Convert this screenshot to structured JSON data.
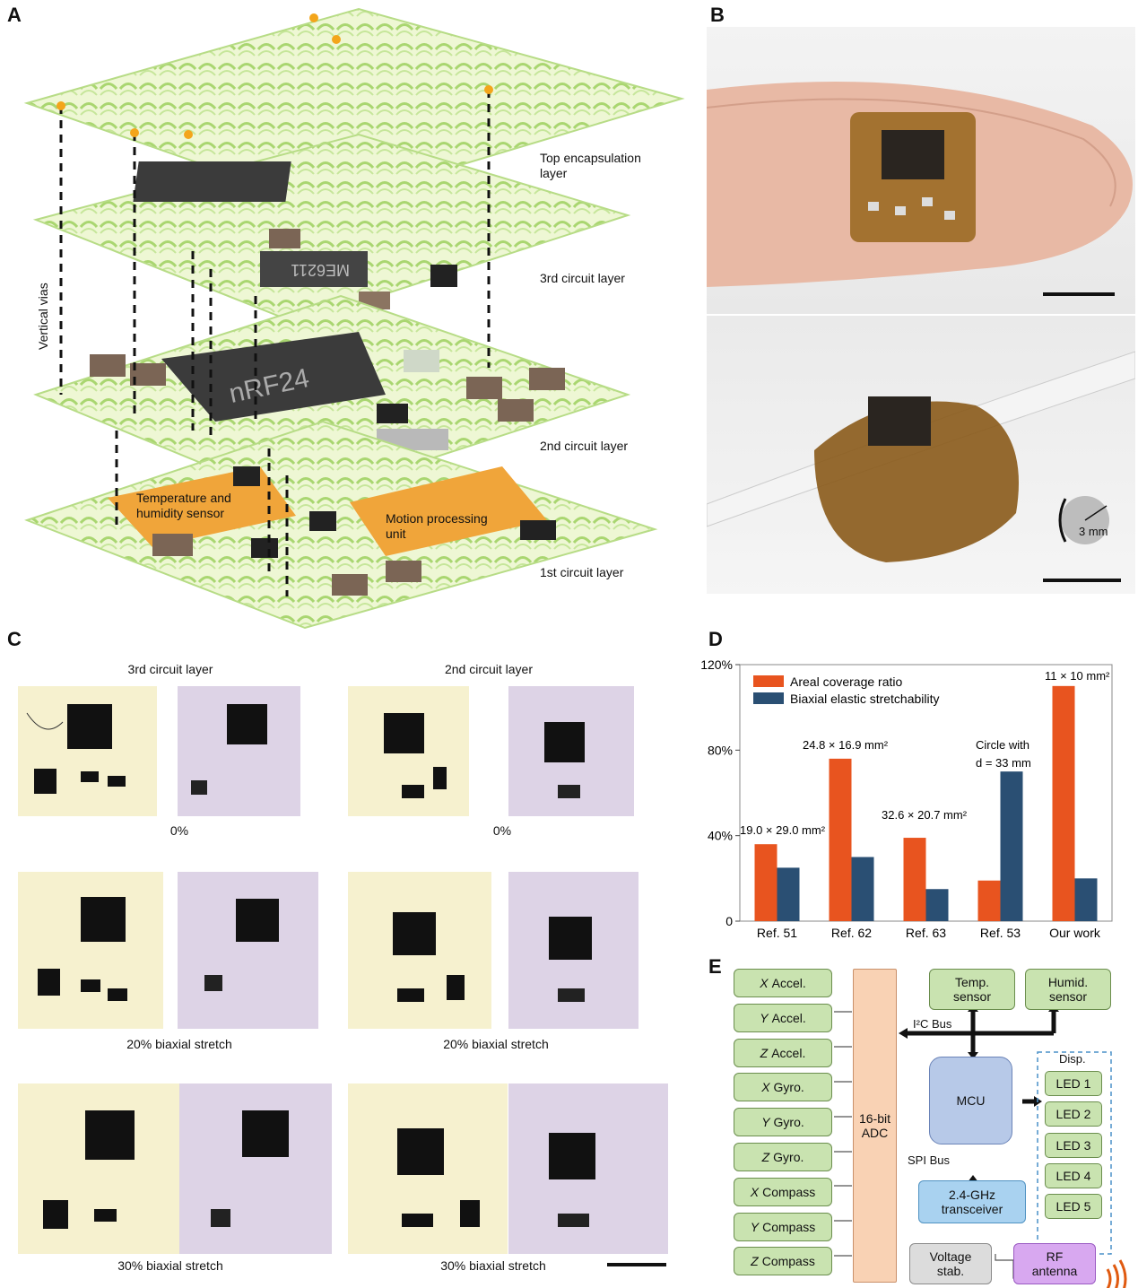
{
  "panels": {
    "a": "A",
    "b": "B",
    "c": "C",
    "d": "D",
    "e": "E"
  },
  "panel_a": {
    "labels": {
      "top": "Top encapsulation layer",
      "third": "3rd circuit layer",
      "second": "2nd circuit layer",
      "first": "1st circuit layer",
      "vias": "Vertical vias",
      "temp": "Temperature and humidity sensor",
      "motion": "Motion processing unit",
      "chip1": "nRF24",
      "chip2": "ME6211"
    }
  },
  "panel_b": {
    "radius_label": "3 mm"
  },
  "panel_c": {
    "col_titles": [
      "3rd circuit layer",
      "2nd circuit layer"
    ],
    "rows": [
      {
        "left": "0%",
        "right": "0%"
      },
      {
        "left": "20% biaxial stretch",
        "right": "20% biaxial stretch"
      },
      {
        "left": "30% biaxial stretch",
        "right": "30% biaxial stretch"
      }
    ]
  },
  "chart_data": {
    "type": "bar",
    "categories": [
      "Ref. 51",
      "Ref. 62",
      "Ref. 63",
      "Ref. 53",
      "Our work"
    ],
    "series": [
      {
        "name": "Areal coverage ratio",
        "color": "#e8541f",
        "values": [
          36,
          76,
          39,
          19,
          110
        ]
      },
      {
        "name": "Biaxial elastic stretchability",
        "color": "#2a4f73",
        "values": [
          25,
          30,
          15,
          70,
          20
        ]
      }
    ],
    "ylim": [
      0,
      120
    ],
    "yticks": [
      "0",
      "40%",
      "80%",
      "120%"
    ],
    "annotations": [
      "19.0 × 29.0 mm²",
      "24.8 × 16.9 mm²",
      "32.6 × 20.7 mm²",
      "Circle with",
      "d = 33 mm",
      "11 × 10 mm²"
    ],
    "legend": "top-left"
  },
  "panel_e": {
    "sensors": [
      {
        "axis": "X",
        "name": "Accel."
      },
      {
        "axis": "Y",
        "name": "Accel."
      },
      {
        "axis": "Z",
        "name": "Accel."
      },
      {
        "axis": "X",
        "name": "Gyro."
      },
      {
        "axis": "Y",
        "name": "Gyro."
      },
      {
        "axis": "Z",
        "name": "Gyro."
      },
      {
        "axis": "X",
        "name": "Compass"
      },
      {
        "axis": "Y",
        "name": "Compass"
      },
      {
        "axis": "Z",
        "name": "Compass"
      }
    ],
    "adc": "16-bit ADC",
    "temp": "Temp. sensor",
    "humid": "Humid. sensor",
    "i2c": "I²C Bus",
    "mcu": "MCU",
    "spi": "SPI Bus",
    "transceiver": "2.4-GHz transceiver",
    "voltage": "Voltage stab.",
    "rf": "RF antenna",
    "disp": "Disp.",
    "leds": [
      "LED 1",
      "LED 2",
      "LED 3",
      "LED 4",
      "LED 5"
    ]
  }
}
